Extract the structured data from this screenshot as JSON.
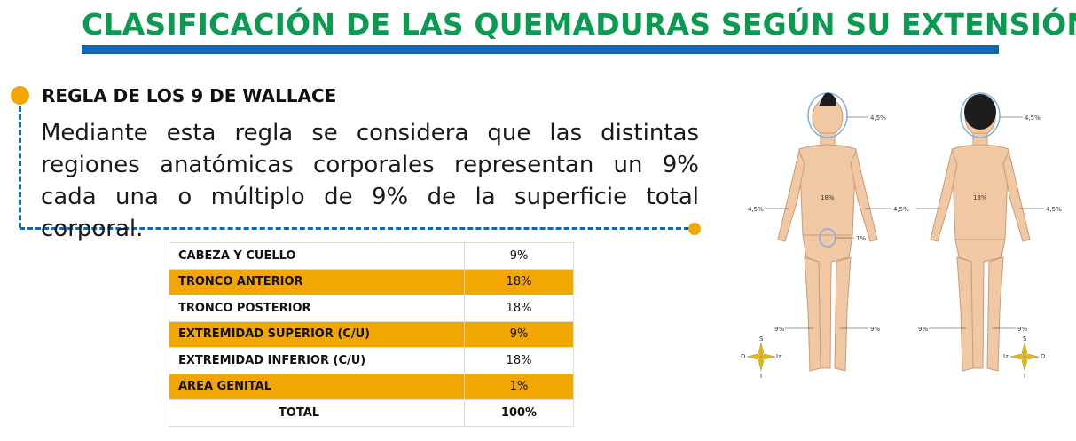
{
  "title": "CLASIFICACIÓN DE LAS QUEMADURAS SEGÚN SU EXTENSIÓN",
  "rule": {
    "heading": "REGLA DE LOS 9 DE WALLACE",
    "text": "Mediante esta regla se considera que las distintas regiones anatómicas corporales representan un 9% cada una o múltiplo de 9% de la superficie total corporal."
  },
  "table": {
    "rows": [
      {
        "region": "CABEZA Y CUELLO",
        "percent": "9%"
      },
      {
        "region": "TRONCO ANTERIOR",
        "percent": "18%"
      },
      {
        "region": "TRONCO POSTERIOR",
        "percent": "18%"
      },
      {
        "region": "EXTREMIDAD SUPERIOR (C/U)",
        "percent": "9%"
      },
      {
        "region": "EXTREMIDAD INFERIOR (C/U)",
        "percent": "18%"
      },
      {
        "region": "AREA GENITAL",
        "percent": "1%"
      }
    ],
    "total": {
      "label": "TOTAL",
      "percent": "100%"
    }
  },
  "figure": {
    "labels": {
      "head_front": "4,5%",
      "head_back": "4,5%",
      "trunk_front": "18%",
      "trunk_back": "18%",
      "arm_front_left": "4,5%",
      "arm_front_right": "4,5%",
      "arm_back_right": "4,5%",
      "genital": "1%",
      "leg_front_left": "9%",
      "leg_front_right": "9%",
      "leg_back_left": "9%",
      "leg_back_right": "9%"
    },
    "compass_front": {
      "n": "S",
      "w": "D",
      "e": "Iz",
      "s": "I"
    },
    "compass_back": {
      "n": "S",
      "w": "Iz",
      "e": "D",
      "s": "I"
    }
  },
  "colors": {
    "title": "#0a9a50",
    "bar": "#1168b0",
    "accent": "#f2a600"
  }
}
